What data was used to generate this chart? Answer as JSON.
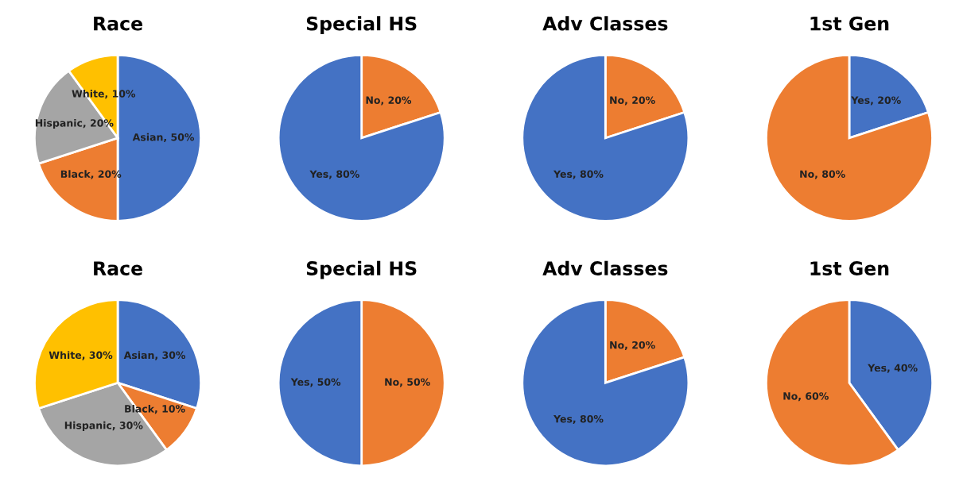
{
  "chart_data": [
    {
      "type": "pie",
      "title": "Race",
      "categories": [
        "Asian",
        "Black",
        "Hispanic",
        "White"
      ],
      "values": [
        50,
        20,
        20,
        10
      ],
      "colors": [
        "#4472c4",
        "#ed7d31",
        "#a5a5a5",
        "#ffc000"
      ],
      "value_labels": [
        "50%",
        "20%",
        "20%",
        "10%"
      ]
    },
    {
      "type": "pie",
      "title": "Special HS",
      "categories": [
        "No",
        "Yes"
      ],
      "values": [
        20,
        80
      ],
      "colors": [
        "#ed7d31",
        "#4472c4"
      ],
      "value_labels": [
        "20%",
        "80%"
      ]
    },
    {
      "type": "pie",
      "title": "Adv Classes",
      "categories": [
        "No",
        "Yes"
      ],
      "values": [
        20,
        80
      ],
      "colors": [
        "#ed7d31",
        "#4472c4"
      ],
      "value_labels": [
        "20%",
        "80%"
      ]
    },
    {
      "type": "pie",
      "title": "1st Gen",
      "categories": [
        "Yes",
        "No"
      ],
      "values": [
        20,
        80
      ],
      "colors": [
        "#4472c4",
        "#ed7d31"
      ],
      "value_labels": [
        "20%",
        "80%"
      ]
    },
    {
      "type": "pie",
      "title": "Race",
      "categories": [
        "Asian",
        "Black",
        "Hispanic",
        "White"
      ],
      "values": [
        30,
        10,
        30,
        30
      ],
      "colors": [
        "#4472c4",
        "#ed7d31",
        "#a5a5a5",
        "#ffc000"
      ],
      "value_labels": [
        "30%",
        "10%",
        "30%",
        "30%"
      ]
    },
    {
      "type": "pie",
      "title": "Special HS",
      "categories": [
        "No",
        "Yes"
      ],
      "values": [
        50,
        50
      ],
      "colors": [
        "#ed7d31",
        "#4472c4"
      ],
      "value_labels": [
        "50%",
        "50%"
      ]
    },
    {
      "type": "pie",
      "title": "Adv Classes",
      "categories": [
        "No",
        "Yes"
      ],
      "values": [
        20,
        80
      ],
      "colors": [
        "#ed7d31",
        "#4472c4"
      ],
      "value_labels": [
        "20%",
        "80%"
      ]
    },
    {
      "type": "pie",
      "title": "1st Gen",
      "categories": [
        "Yes",
        "No"
      ],
      "values": [
        40,
        60
      ],
      "colors": [
        "#4472c4",
        "#ed7d31"
      ],
      "value_labels": [
        "40%",
        "60%"
      ]
    }
  ]
}
